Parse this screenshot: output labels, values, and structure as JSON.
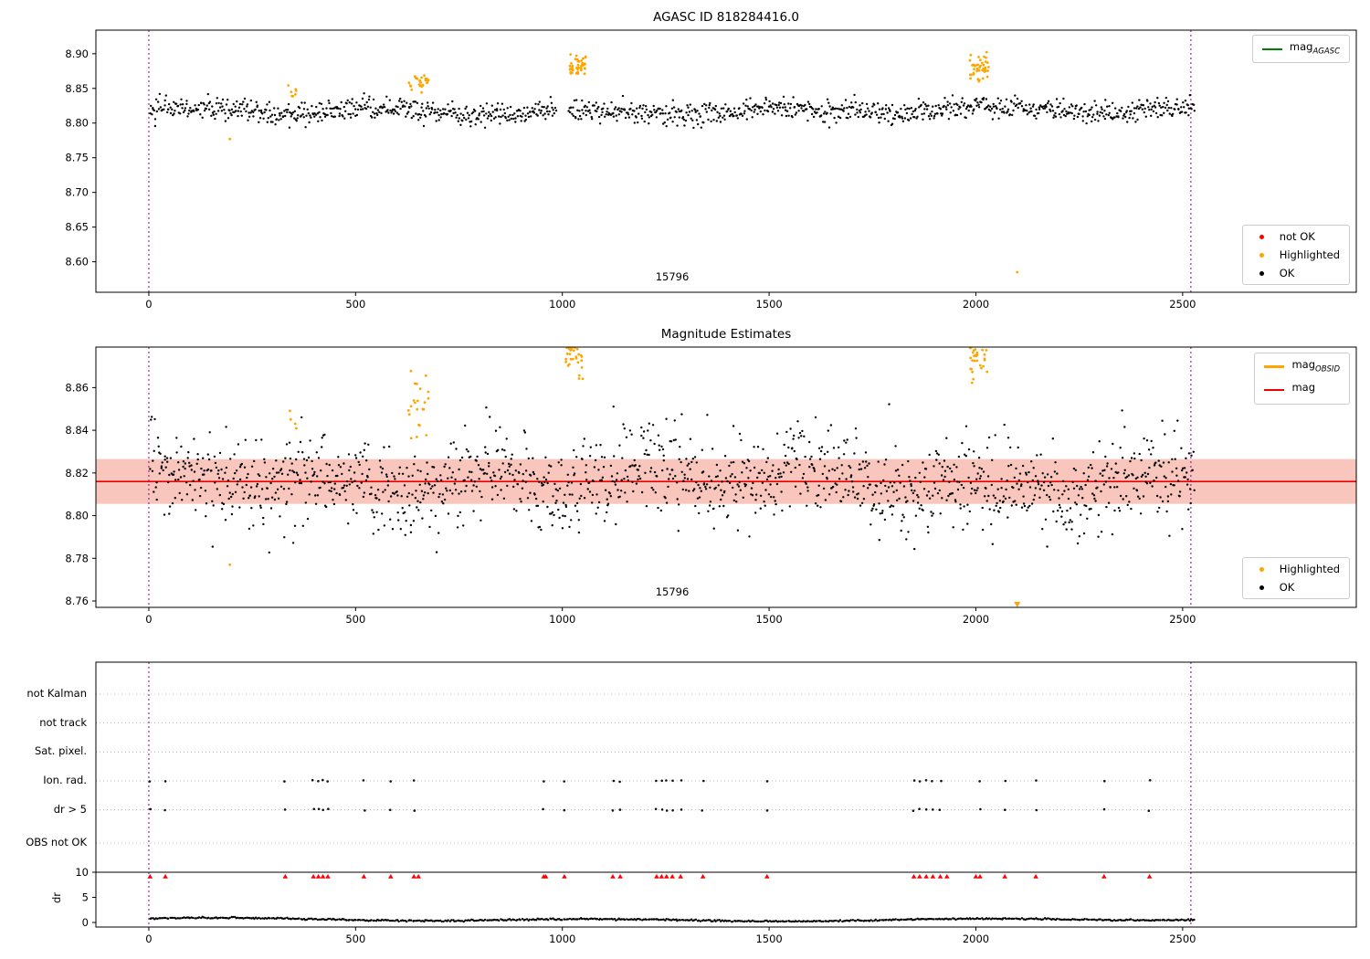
{
  "colors": {
    "ok": "#000000",
    "highlighted": "#ffa500",
    "not_ok": "#ff0000",
    "mag_agasc_line": "#008000",
    "mag_obsid_line": "#ffa500",
    "mag_line": "#ee0000",
    "mag_band": "#f9c6be",
    "vline": "#8b008b",
    "flag_dot": "#111111",
    "triangle": "#ff0000",
    "grid": "#aaaaaa"
  },
  "chart_data": [
    {
      "type": "scatter",
      "title": "AGASC ID 818284416.0",
      "annotation": "15796",
      "xlim": [
        -128,
        2920
      ],
      "ylim": [
        8.556,
        8.934
      ],
      "xticks": [
        0,
        500,
        1000,
        1500,
        2000,
        2500
      ],
      "yticks": [
        8.6,
        8.65,
        8.7,
        8.75,
        8.8,
        8.85,
        8.9
      ],
      "ytick_labels": [
        "8.60",
        "8.65",
        "8.70",
        "8.75",
        "8.80",
        "8.85",
        "8.90"
      ],
      "vlines": [
        0,
        2520
      ],
      "legend_line": {
        "main": "mag",
        "sub": "AGASC"
      },
      "legend_markers": [
        {
          "label": "not OK"
        },
        {
          "label": "Highlighted"
        },
        {
          "label": "OK"
        }
      ],
      "ok_series": {
        "n": 1300,
        "x0": 3,
        "x1": 2528,
        "base": 8.817,
        "wave1": [
          0.004,
          0.013,
          0.4
        ],
        "wave2": [
          0.0028,
          0.003,
          1.7
        ],
        "noise": 0.008,
        "ymin": 8.774,
        "ymax": 8.858,
        "gaps": [
          [
            985,
            1015
          ]
        ]
      },
      "hl_clusters": [
        {
          "x0": 337,
          "x1": 362,
          "n": 7,
          "mean": 8.845,
          "sd": 0.004
        },
        {
          "x0": 628,
          "x1": 678,
          "n": 26,
          "mean": 8.857,
          "sd": 0.006
        },
        {
          "x0": 1012,
          "x1": 1058,
          "n": 48,
          "mean": 8.883,
          "sd": 0.0075
        },
        {
          "x0": 1983,
          "x1": 2032,
          "n": 44,
          "mean": 8.879,
          "sd": 0.009
        }
      ],
      "hl_points": [
        [
          196,
          8.777
        ],
        [
          2100,
          8.585
        ]
      ]
    },
    {
      "type": "scatter",
      "title": "Magnitude Estimates",
      "annotation": "15796",
      "xlim": [
        -128,
        2920
      ],
      "ylim": [
        8.757,
        8.879
      ],
      "xticks": [
        0,
        500,
        1000,
        1500,
        2000,
        2500
      ],
      "yticks": [
        8.76,
        8.78,
        8.8,
        8.82,
        8.84,
        8.86
      ],
      "ytick_labels": [
        "8.76",
        "8.78",
        "8.80",
        "8.82",
        "8.84",
        "8.86"
      ],
      "vlines": [
        0,
        2520
      ],
      "mag_line": 8.816,
      "band": [
        8.8055,
        8.8265
      ],
      "legend_lines": [
        {
          "main": "mag",
          "sub": "OBSID"
        },
        {
          "main": "mag",
          "sub": ""
        }
      ],
      "legend_markers": [
        {
          "label": "Highlighted"
        },
        {
          "label": "OK"
        }
      ],
      "ok_series": {
        "n": 1500,
        "x0": 3,
        "x1": 2528,
        "base": 8.816,
        "wave1": [
          0.0045,
          0.016,
          0.9
        ],
        "wave2": [
          0.003,
          0.0042,
          2.3
        ],
        "noise": 0.0105,
        "ymin": 8.778,
        "ymax": 8.862,
        "gaps": []
      },
      "hl_clusters": [
        {
          "x0": 340,
          "x1": 360,
          "n": 4,
          "mean": 8.846,
          "sd": 0.003
        },
        {
          "x0": 628,
          "x1": 678,
          "n": 22,
          "mean": 8.853,
          "sd": 0.007
        },
        {
          "x0": 1008,
          "x1": 1052,
          "n": 42,
          "mean": 8.878,
          "sd": 0.006
        },
        {
          "x0": 1985,
          "x1": 2030,
          "n": 40,
          "mean": 8.876,
          "sd": 0.007
        }
      ],
      "hl_points": [
        [
          196,
          8.777
        ]
      ],
      "clip_low_x": [
        2100
      ]
    },
    {
      "type": "flags",
      "xlim": [
        -128,
        2920
      ],
      "xticks": [
        0,
        500,
        1000,
        1500,
        2000,
        2500
      ],
      "vlines": [
        0,
        2520
      ],
      "categories": [
        "not Kalman",
        "not track",
        "Sat. pixel.",
        "Ion. rad.",
        "dr > 5",
        "OBS not OK"
      ],
      "events_x": [
        3,
        40,
        330,
        398,
        410,
        421,
        433,
        520,
        585,
        641,
        955,
        1005,
        1122,
        1140,
        1228,
        1240,
        1252,
        1266,
        1286,
        1340,
        1495,
        1850,
        1864,
        1880,
        1896,
        1914,
        2010,
        2070,
        2145,
        2310,
        2420
      ],
      "triangles_extra_x": [
        652,
        960,
        1930,
        2000
      ],
      "dr_ticks": [
        0,
        5,
        10
      ],
      "dr_tick_labels": [
        "0",
        "5",
        "10"
      ],
      "dr_axis_label": "dr",
      "dr_hline": 10,
      "dr_trace": {
        "n": 680,
        "x0": 3,
        "x1": 2528,
        "base": 0.6,
        "wave1": [
          0.22,
          0.007,
          0.2
        ],
        "wave2": [
          0.18,
          0.0019,
          2.1
        ],
        "noise": 0.08,
        "ymin": 0.15,
        "ymax": 2.0,
        "gaps": []
      }
    }
  ]
}
